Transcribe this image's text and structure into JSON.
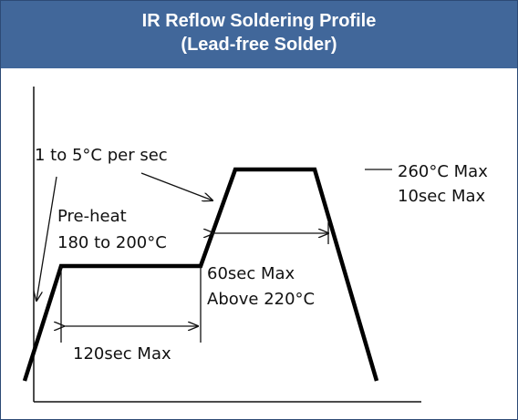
{
  "header": {
    "title_lines": [
      "IR Reflow Soldering Profile",
      "(Lead-free Solder)"
    ]
  },
  "annotations": {
    "ramp_rate": "1 to 5°C per sec",
    "preheat": [
      "Pre-heat",
      "180 to 200°C"
    ],
    "peak": [
      "260°C Max",
      "10sec Max"
    ],
    "reflow": [
      "60sec Max",
      "Above 220°C"
    ],
    "preheat_time": "120sec Max"
  }
}
